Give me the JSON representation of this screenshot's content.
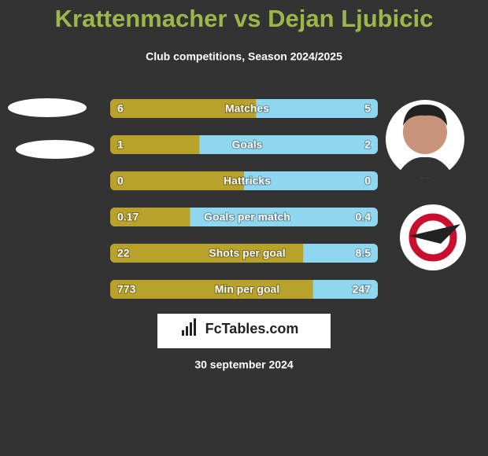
{
  "title": "Krattenmacher vs Dejan Ljubicic",
  "subtitle": "Club competitions, Season 2024/2025",
  "rows": [
    {
      "label": "Matches",
      "left": 6,
      "right": 5
    },
    {
      "label": "Goals",
      "left": 1,
      "right": 2
    },
    {
      "label": "Hattricks",
      "left": 0,
      "right": 0
    },
    {
      "label": "Goals per match",
      "left": 0.17,
      "right": 0.4
    },
    {
      "label": "Shots per goal",
      "left": 22,
      "right": 8.5
    },
    {
      "label": "Min per goal",
      "left": 773,
      "right": 247
    }
  ],
  "brand": "FcTables.com",
  "date": "30 september 2024"
}
